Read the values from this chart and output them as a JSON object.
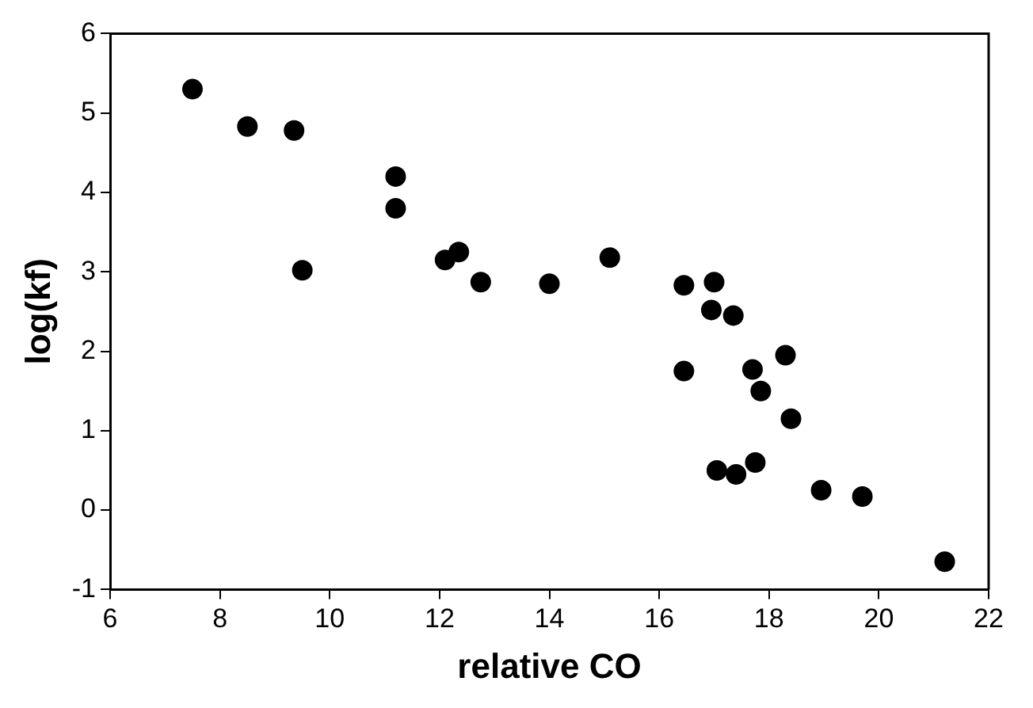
{
  "chart_data": {
    "type": "scatter",
    "xlabel": "relative CO",
    "ylabel": "log(kf)",
    "xlim": [
      6,
      22
    ],
    "xticks": [
      6,
      8,
      10,
      12,
      14,
      16,
      18,
      20,
      22
    ],
    "ylim": [
      -1,
      6
    ],
    "yticks": [
      -1,
      0,
      1,
      2,
      3,
      4,
      5,
      6
    ],
    "grid": false,
    "legend": false,
    "marker": "circle",
    "series": [
      {
        "color": "#000000",
        "x": [
          7.5,
          8.5,
          9.35,
          9.5,
          11.2,
          11.2,
          12.1,
          12.35,
          12.75,
          14.0,
          15.1,
          16.45,
          16.45,
          17.0,
          16.95,
          17.35,
          17.7,
          17.85,
          18.3,
          18.4,
          17.05,
          17.4,
          17.75,
          18.95,
          19.7,
          21.2
        ],
        "values": [
          5.3,
          4.83,
          4.78,
          3.02,
          4.2,
          3.8,
          3.15,
          3.25,
          2.87,
          2.85,
          3.18,
          2.83,
          1.75,
          2.87,
          2.52,
          2.45,
          1.77,
          1.5,
          1.95,
          1.15,
          0.5,
          0.45,
          0.6,
          0.25,
          0.17,
          -0.65
        ]
      }
    ]
  }
}
